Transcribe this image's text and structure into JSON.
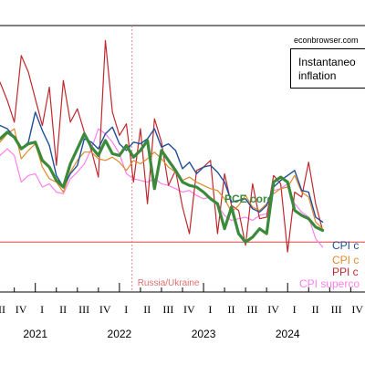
{
  "source": "econbrowser.com",
  "title": "Instantaneous inflation",
  "title_lines": [
    "Instantaneo",
    "inflation"
  ],
  "event_label": "Russia/Ukraine",
  "colors": {
    "cpi_core": "#1f4e99",
    "cpi_core_alt": "#e08a2b",
    "ppi_core": "#c0282d",
    "pce_core": "#3b8a3b",
    "cpi_supercore": "#ff80ee",
    "zero_line": "#e04040",
    "event_line": "#e07070"
  },
  "chart_data": {
    "type": "line",
    "xlabel": "",
    "ylabel": "",
    "x_ticks": [
      {
        "label": "III",
        "x": 2020.58
      },
      {
        "label": "IV",
        "x": 2020.83
      },
      {
        "label": "I",
        "x": 2021.08
      },
      {
        "label": "II",
        "x": 2021.33
      },
      {
        "label": "III",
        "x": 2021.58
      },
      {
        "label": "IV",
        "x": 2021.83
      },
      {
        "label": "I",
        "x": 2022.08
      },
      {
        "label": "II",
        "x": 2022.33
      },
      {
        "label": "III",
        "x": 2022.58
      },
      {
        "label": "IV",
        "x": 2022.83
      },
      {
        "label": "I",
        "x": 2023.08
      },
      {
        "label": "II",
        "x": 2023.33
      },
      {
        "label": "III",
        "x": 2023.58
      },
      {
        "label": "IV",
        "x": 2023.83
      },
      {
        "label": "I",
        "x": 2024.08
      },
      {
        "label": "II",
        "x": 2024.33
      },
      {
        "label": "III",
        "x": 2024.58
      },
      {
        "label": "IV",
        "x": 2024.83
      }
    ],
    "year_labels": [
      {
        "label": "2021",
        "x": 2021.0
      },
      {
        "label": "2022",
        "x": 2022.0
      },
      {
        "label": "2023",
        "x": 2023.0
      },
      {
        "label": "2024",
        "x": 2024.0
      }
    ],
    "xlim": [
      2020.58,
      2024.92
    ],
    "ylim": [
      -3,
      13
    ],
    "zero_line": 0,
    "event_x": 2022.15,
    "series": [
      {
        "name": "CPI core",
        "label": "CPI c",
        "key": "cpi_core",
        "width": 1.4,
        "x": [
          2020.58,
          2020.667,
          2020.75,
          2020.833,
          2020.917,
          2021.0,
          2021.083,
          2021.167,
          2021.25,
          2021.333,
          2021.417,
          2021.5,
          2021.583,
          2021.667,
          2021.75,
          2021.833,
          2021.917,
          2022.0,
          2022.083,
          2022.167,
          2022.25,
          2022.333,
          2022.417,
          2022.5,
          2022.583,
          2022.667,
          2022.75,
          2022.833,
          2022.917,
          2023.0,
          2023.083,
          2023.167,
          2023.25,
          2023.333,
          2023.417,
          2023.5,
          2023.583,
          2023.667,
          2023.75,
          2023.833,
          2023.917,
          2024.0,
          2024.083,
          2024.167,
          2024.25,
          2024.333,
          2024.417
        ],
        "y": [
          7.0,
          6.8,
          6.3,
          5.6,
          6.0,
          7.8,
          6.7,
          5.8,
          4.0,
          3.3,
          4.1,
          4.6,
          6.2,
          6.0,
          5.6,
          6.5,
          6.9,
          5.9,
          5.5,
          6.0,
          5.9,
          6.2,
          6.8,
          5.7,
          5.9,
          5.5,
          4.4,
          4.8,
          4.1,
          4.5,
          4.6,
          4.2,
          3.6,
          2.4,
          2.5,
          2.6,
          2.0,
          1.8,
          2.2,
          3.3,
          3.7,
          4.0,
          4.3,
          3.1,
          3.0,
          1.5,
          1.2
        ]
      },
      {
        "name": "CPI core (alt)",
        "label": "CPI c",
        "key": "cpi_core_alt",
        "width": 1.2,
        "x": [
          2020.58,
          2020.667,
          2020.75,
          2020.833,
          2020.917,
          2021.0,
          2021.083,
          2021.167,
          2021.25,
          2021.333,
          2021.417,
          2021.5,
          2021.583,
          2021.667,
          2021.75,
          2021.833,
          2021.917,
          2022.0,
          2022.083,
          2022.167,
          2022.25,
          2022.333,
          2022.417,
          2022.5,
          2022.583,
          2022.667,
          2022.75,
          2022.833,
          2022.917,
          2023.0,
          2023.083,
          2023.167,
          2023.25,
          2023.333,
          2023.417,
          2023.5,
          2023.583,
          2023.667,
          2023.75,
          2023.833,
          2023.917,
          2024.0,
          2024.083,
          2024.167,
          2024.25,
          2024.333,
          2024.417
        ],
        "y": [
          6.0,
          6.5,
          6.8,
          5.0,
          5.5,
          5.9,
          4.5,
          3.8,
          3.6,
          3.0,
          4.2,
          4.9,
          5.4,
          5.4,
          5.0,
          4.9,
          5.1,
          4.8,
          4.3,
          4.9,
          4.7,
          5.0,
          5.4,
          5.0,
          4.5,
          4.2,
          3.7,
          3.9,
          3.6,
          3.4,
          3.2,
          3.1,
          2.6,
          1.8,
          2.2,
          2.8,
          2.1,
          1.9,
          2.3,
          2.9,
          3.2,
          3.3,
          4.0,
          3.0,
          2.7,
          1.2,
          0.8
        ]
      },
      {
        "name": "PPI core",
        "label": "PPI c",
        "key": "ppi_core",
        "width": 1.2,
        "x": [
          2020.58,
          2020.667,
          2020.75,
          2020.833,
          2020.917,
          2021.0,
          2021.083,
          2021.167,
          2021.25,
          2021.333,
          2021.417,
          2021.5,
          2021.583,
          2021.667,
          2021.75,
          2021.833,
          2021.917,
          2022.0,
          2022.083,
          2022.167,
          2022.25,
          2022.333,
          2022.417,
          2022.5,
          2022.583,
          2022.667,
          2022.75,
          2022.833,
          2022.917,
          2023.0,
          2023.083,
          2023.167,
          2023.25,
          2023.333,
          2023.417,
          2023.5,
          2023.583,
          2023.667,
          2023.75,
          2023.833,
          2023.917,
          2024.0,
          2024.083,
          2024.167,
          2024.25,
          2024.333,
          2024.417
        ],
        "y": [
          9.6,
          8.5,
          7.2,
          11.2,
          10.2,
          8.6,
          7.0,
          9.3,
          4.6,
          9.7,
          7.2,
          8.0,
          6.6,
          5.5,
          3.9,
          12.1,
          7.8,
          6.4,
          7.1,
          3.6,
          6.8,
          2.3,
          7.4,
          6.0,
          3.4,
          4.3,
          2.1,
          0.5,
          4.3,
          4.5,
          4.9,
          0.5,
          4.1,
          2.2,
          1.9,
          -0.2,
          3.5,
          1.4,
          1.5,
          4.0,
          3.5,
          -0.6,
          3.0,
          2.7,
          4.8,
          2.3,
          0.7
        ]
      },
      {
        "name": "CPI supercore",
        "label": "CPI superco",
        "key": "cpi_supercore",
        "width": 1.2,
        "x": [
          2020.58,
          2020.667,
          2020.75,
          2020.833,
          2020.917,
          2021.0,
          2021.083,
          2021.167,
          2021.25,
          2021.333,
          2021.417,
          2021.5,
          2021.583,
          2021.667,
          2021.75,
          2021.833,
          2021.917,
          2022.0,
          2022.083,
          2022.167,
          2022.25,
          2022.333,
          2022.417,
          2022.5,
          2022.583,
          2022.667,
          2022.75,
          2022.833,
          2022.917,
          2023.0,
          2023.083,
          2023.167,
          2023.25,
          2023.333,
          2023.417,
          2023.5,
          2023.583,
          2023.667,
          2023.75,
          2023.833,
          2023.917,
          2024.0,
          2024.083,
          2024.167,
          2024.25,
          2024.333,
          2024.417
        ],
        "y": [
          5.2,
          5.6,
          5.2,
          3.6,
          4.0,
          4.1,
          3.3,
          3.5,
          3.0,
          2.9,
          3.8,
          4.2,
          4.7,
          5.6,
          6.8,
          6.5,
          6.0,
          5.3,
          4.1,
          3.8,
          3.7,
          3.6,
          3.8,
          3.5,
          3.4,
          3.2,
          3.0,
          3.1,
          2.8,
          2.6,
          2.7,
          2.2,
          1.6,
          1.3,
          1.4,
          1.5,
          1.3,
          1.6,
          1.7,
          3.1,
          3.2,
          3.5,
          2.3,
          1.8,
          1.5,
          0.2,
          -0.3
        ]
      },
      {
        "name": "PCE core",
        "label": "PCE core",
        "key": "pce_core",
        "width": 3.2,
        "x": [
          2020.58,
          2020.667,
          2020.75,
          2020.833,
          2020.917,
          2021.0,
          2021.083,
          2021.167,
          2021.25,
          2021.333,
          2021.417,
          2021.5,
          2021.583,
          2021.667,
          2021.75,
          2021.833,
          2021.917,
          2022.0,
          2022.083,
          2022.167,
          2022.25,
          2022.333,
          2022.417,
          2022.5,
          2022.583,
          2022.667,
          2022.75,
          2022.833,
          2022.917,
          2023.0,
          2023.083,
          2023.167,
          2023.25,
          2023.333,
          2023.417,
          2023.5,
          2023.583,
          2023.667,
          2023.75,
          2023.833,
          2023.917,
          2024.0,
          2024.083,
          2024.167,
          2024.25,
          2024.333,
          2024.417
        ],
        "y": [
          6.2,
          6.6,
          6.3,
          5.6,
          5.9,
          6.0,
          4.9,
          4.5,
          3.7,
          3.3,
          4.7,
          5.6,
          6.5,
          5.7,
          5.2,
          6.1,
          5.3,
          5.2,
          5.8,
          5.1,
          5.5,
          6.1,
          3.2,
          5.5,
          4.9,
          4.3,
          3.6,
          3.4,
          3.3,
          3.0,
          2.6,
          2.3,
          0.8,
          2.1,
          0.5,
          0.0,
          0.3,
          0.8,
          0.5,
          3.6,
          3.9,
          3.6,
          1.9,
          1.6,
          1.4,
          0.9,
          0.7
        ]
      }
    ],
    "annotations": [
      {
        "text": "PCE core",
        "series": "pce_core"
      }
    ]
  }
}
